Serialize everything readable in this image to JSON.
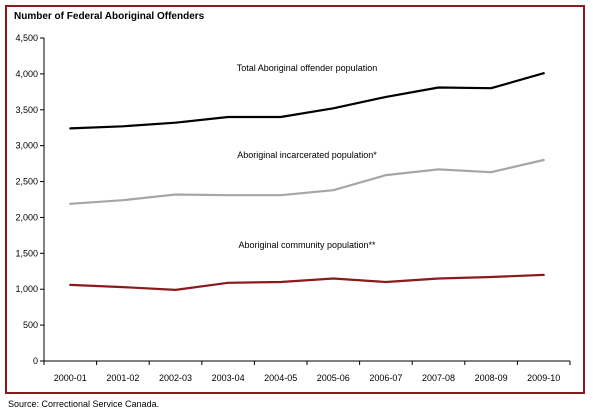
{
  "chart_data": {
    "type": "line",
    "title": "Number of Federal Aboriginal Offenders",
    "xlabel": "",
    "ylabel": "",
    "categories": [
      "2000-01",
      "2001-02",
      "2002-03",
      "2003-04",
      "2004-05",
      "2005-06",
      "2006-07",
      "2007-08",
      "2008-09",
      "2009-10"
    ],
    "ylim": [
      0,
      4500
    ],
    "yticks": [
      "0",
      "500",
      "1,000",
      "1,500",
      "2,000",
      "2,500",
      "3,000",
      "3,500",
      "4,000",
      "4,500"
    ],
    "grid": false,
    "series": [
      {
        "name": "Total Aboriginal offender population",
        "color": "#000000",
        "values": [
          3240,
          3270,
          3320,
          3400,
          3400,
          3520,
          3680,
          3810,
          3800,
          4010
        ]
      },
      {
        "name": "Aboriginal incarcerated population*",
        "color": "#a6a6a6",
        "values": [
          2190,
          2240,
          2320,
          2310,
          2310,
          2380,
          2590,
          2670,
          2630,
          2800
        ]
      },
      {
        "name": "Aboriginal community population**",
        "color": "#8b1a1a",
        "values": [
          1060,
          1030,
          990,
          1090,
          1100,
          1150,
          1100,
          1150,
          1170,
          1200
        ]
      }
    ]
  },
  "source": "Source:  Correctional Service Canada."
}
